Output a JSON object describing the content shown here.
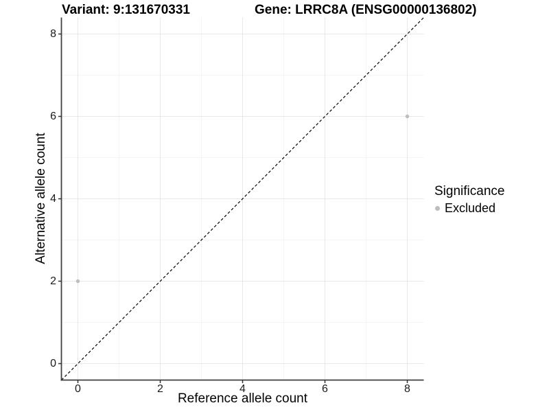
{
  "titles": {
    "left": "Variant: 9:131670331",
    "right": "Gene: LRRC8A (ENSG00000136802)"
  },
  "chart_data": {
    "type": "scatter",
    "title_left": "Variant: 9:131670331",
    "title_right": "Gene: LRRC8A (ENSG00000136802)",
    "xlabel": "Reference allele count",
    "ylabel": "Alternative allele count",
    "xlim": [
      -0.4,
      8.4
    ],
    "ylim": [
      -0.4,
      8.4
    ],
    "x_ticks": [
      0,
      2,
      4,
      6,
      8
    ],
    "y_ticks": [
      0,
      2,
      4,
      6,
      8
    ],
    "x_minor_ticks": [
      1,
      3,
      5,
      7
    ],
    "y_minor_ticks": [
      1,
      3,
      5,
      7
    ],
    "grid": true,
    "series": [
      {
        "name": "Excluded",
        "points": [
          {
            "x": 0,
            "y": 2
          },
          {
            "x": 8,
            "y": 6
          }
        ]
      }
    ],
    "identity_line": {
      "style": "dashed",
      "from": [
        -0.4,
        -0.4
      ],
      "to": [
        8.4,
        8.4
      ]
    },
    "legend": {
      "title": "Significance",
      "position": "right",
      "items": [
        {
          "label": "Excluded",
          "color": "#bdbdbd"
        }
      ]
    },
    "colors": {
      "point": "#bdbdbd",
      "grid_major": "#e8e8e8",
      "grid_minor": "#f4f4f4",
      "axis_line": "#3f3f3f",
      "tick_mark": "#333333",
      "dashed_line": "#000000",
      "background": "#ffffff"
    }
  }
}
